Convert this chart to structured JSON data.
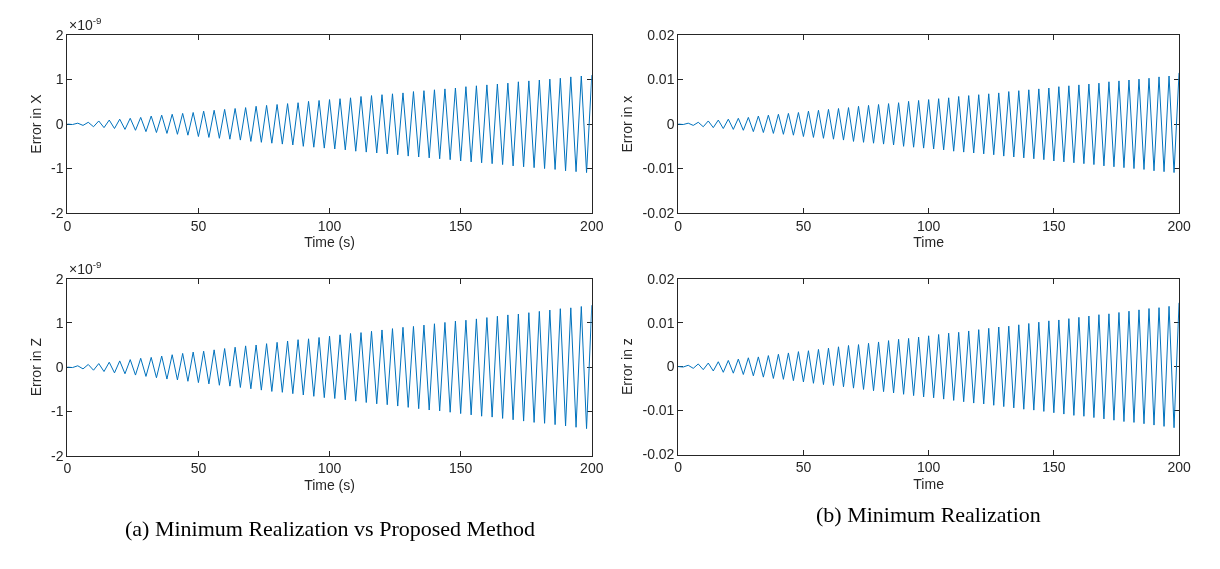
{
  "chart_data": [
    {
      "type": "line",
      "ylabel": "Error in X",
      "xlabel": "Time (s)",
      "annotations": [
        "×10$^{-9}$"
      ],
      "xlim": [
        0,
        200
      ],
      "xticks": [
        0,
        50,
        100,
        150,
        200
      ],
      "ylim": [
        -2,
        2
      ],
      "yticks": [
        -2,
        -1,
        0,
        1,
        2
      ],
      "marker": "none",
      "line_style": "solid",
      "x": [
        0,
        2,
        4,
        6,
        8,
        10,
        12,
        14,
        16,
        18,
        20,
        22,
        24,
        26,
        28,
        30,
        32,
        34,
        36,
        38,
        40,
        42,
        44,
        46,
        48,
        50,
        52,
        54,
        56,
        58,
        60,
        62,
        64,
        66,
        68,
        70,
        72,
        74,
        76,
        78,
        80,
        82,
        84,
        86,
        88,
        90,
        92,
        94,
        96,
        98,
        100,
        102,
        104,
        106,
        108,
        110,
        112,
        114,
        116,
        118,
        120,
        122,
        124,
        126,
        128,
        130,
        132,
        134,
        136,
        138,
        140,
        142,
        144,
        146,
        148,
        150,
        152,
        154,
        156,
        158,
        160,
        162,
        164,
        166,
        168,
        170,
        172,
        174,
        176,
        178,
        180,
        182,
        184,
        186,
        188,
        190,
        192,
        194,
        196,
        198,
        200
      ],
      "series": [
        {
          "color": "#0072bd",
          "values": [
            0,
            -0.01,
            0.02,
            -0.03,
            0.04,
            -0.06,
            0.07,
            -0.08,
            0.09,
            -0.1,
            0.11,
            -0.12,
            0.13,
            -0.14,
            0.15,
            -0.17,
            0.18,
            -0.19,
            0.2,
            -0.21,
            0.22,
            -0.23,
            0.24,
            -0.25,
            0.26,
            -0.28,
            0.29,
            -0.3,
            0.31,
            -0.32,
            0.33,
            -0.34,
            0.35,
            -0.36,
            0.37,
            -0.39,
            0.4,
            -0.41,
            0.42,
            -0.43,
            0.44,
            -0.45,
            0.46,
            -0.47,
            0.48,
            -0.5,
            0.51,
            -0.52,
            0.53,
            -0.54,
            0.55,
            -0.56,
            0.57,
            -0.58,
            0.59,
            -0.61,
            0.62,
            -0.63,
            0.64,
            -0.65,
            0.66,
            -0.67,
            0.68,
            -0.69,
            0.7,
            -0.72,
            0.73,
            -0.74,
            0.75,
            -0.76,
            0.77,
            -0.78,
            0.79,
            -0.8,
            0.81,
            -0.83,
            0.84,
            -0.85,
            0.86,
            -0.87,
            0.88,
            -0.89,
            0.9,
            -0.91,
            0.92,
            -0.94,
            0.95,
            -0.96,
            0.97,
            -0.98,
            0.99,
            -1.0,
            1.01,
            -1.02,
            1.03,
            -1.05,
            1.06,
            -1.07,
            1.08,
            -1.09,
            1.1
          ]
        }
      ]
    },
    {
      "type": "line",
      "ylabel": "Error in x",
      "xlabel": "Time",
      "xlim": [
        0,
        200
      ],
      "xticks": [
        0,
        50,
        100,
        150,
        200
      ],
      "ylim": [
        -0.02,
        0.02
      ],
      "yticks": [
        -0.02,
        -0.01,
        0,
        0.01,
        0.02
      ],
      "marker": "none",
      "line_style": "solid",
      "x": [
        0,
        2,
        4,
        6,
        8,
        10,
        12,
        14,
        16,
        18,
        20,
        22,
        24,
        26,
        28,
        30,
        32,
        34,
        36,
        38,
        40,
        42,
        44,
        46,
        48,
        50,
        52,
        54,
        56,
        58,
        60,
        62,
        64,
        66,
        68,
        70,
        72,
        74,
        76,
        78,
        80,
        82,
        84,
        86,
        88,
        90,
        92,
        94,
        96,
        98,
        100,
        102,
        104,
        106,
        108,
        110,
        112,
        114,
        116,
        118,
        120,
        122,
        124,
        126,
        128,
        130,
        132,
        134,
        136,
        138,
        140,
        142,
        144,
        146,
        148,
        150,
        152,
        154,
        156,
        158,
        160,
        162,
        164,
        166,
        168,
        170,
        172,
        174,
        176,
        178,
        180,
        182,
        184,
        186,
        188,
        190,
        192,
        194,
        196,
        198,
        200
      ],
      "series": [
        {
          "color": "#0072bd",
          "values": [
            0,
            -0.0001,
            0.0002,
            -0.0003,
            0.0004,
            -0.0006,
            0.0007,
            -0.0008,
            0.0009,
            -0.001,
            0.0011,
            -0.0012,
            0.0013,
            -0.0014,
            0.0015,
            -0.0017,
            0.0018,
            -0.0019,
            0.002,
            -0.0021,
            0.0022,
            -0.0023,
            0.0024,
            -0.0025,
            0.0026,
            -0.0028,
            0.0029,
            -0.003,
            0.0031,
            -0.0032,
            0.0033,
            -0.0034,
            0.0035,
            -0.0036,
            0.0037,
            -0.0039,
            0.004,
            -0.0041,
            0.0042,
            -0.0043,
            0.0044,
            -0.0045,
            0.0046,
            -0.0047,
            0.0048,
            -0.005,
            0.0051,
            -0.0052,
            0.0053,
            -0.0054,
            0.0055,
            -0.0056,
            0.0057,
            -0.0058,
            0.0059,
            -0.0061,
            0.0062,
            -0.0063,
            0.0064,
            -0.0065,
            0.0066,
            -0.0067,
            0.0068,
            -0.0069,
            0.007,
            -0.0072,
            0.0073,
            -0.0074,
            0.0075,
            -0.0076,
            0.0077,
            -0.0078,
            0.0079,
            -0.008,
            0.0081,
            -0.0083,
            0.0084,
            -0.0085,
            0.0086,
            -0.0087,
            0.0088,
            -0.0089,
            0.009,
            -0.0091,
            0.0092,
            -0.0094,
            0.0095,
            -0.0096,
            0.0097,
            -0.0098,
            0.0099,
            -0.01,
            0.0101,
            -0.0102,
            0.0103,
            -0.0105,
            0.0106,
            -0.0107,
            0.0108,
            -0.0109,
            0.0115
          ]
        }
      ]
    },
    {
      "type": "line",
      "ylabel": "Error in Z",
      "xlabel": "Time (s)",
      "annotations": [
        "×10$^{-9}$",
        "(a) Minimum Realization vs Proposed Method"
      ],
      "xlim": [
        0,
        200
      ],
      "xticks": [
        0,
        50,
        100,
        150,
        200
      ],
      "ylim": [
        -2,
        2
      ],
      "yticks": [
        -2,
        -1,
        0,
        1,
        2
      ],
      "marker": "none",
      "line_style": "solid",
      "x": [
        0,
        2,
        4,
        6,
        8,
        10,
        12,
        14,
        16,
        18,
        20,
        22,
        24,
        26,
        28,
        30,
        32,
        34,
        36,
        38,
        40,
        42,
        44,
        46,
        48,
        50,
        52,
        54,
        56,
        58,
        60,
        62,
        64,
        66,
        68,
        70,
        72,
        74,
        76,
        78,
        80,
        82,
        84,
        86,
        88,
        90,
        92,
        94,
        96,
        98,
        100,
        102,
        104,
        106,
        108,
        110,
        112,
        114,
        116,
        118,
        120,
        122,
        124,
        126,
        128,
        130,
        132,
        134,
        136,
        138,
        140,
        142,
        144,
        146,
        148,
        150,
        152,
        154,
        156,
        158,
        160,
        162,
        164,
        166,
        168,
        170,
        172,
        174,
        176,
        178,
        180,
        182,
        184,
        186,
        188,
        190,
        192,
        194,
        196,
        198,
        200
      ],
      "series": [
        {
          "color": "#0072bd",
          "values": [
            0,
            -0.01,
            0.03,
            -0.04,
            0.06,
            -0.07,
            0.08,
            -0.1,
            0.11,
            -0.13,
            0.14,
            -0.15,
            0.17,
            -0.18,
            0.2,
            -0.21,
            0.22,
            -0.24,
            0.25,
            -0.27,
            0.28,
            -0.29,
            0.31,
            -0.32,
            0.34,
            -0.35,
            0.36,
            -0.38,
            0.39,
            -0.41,
            0.42,
            -0.43,
            0.45,
            -0.46,
            0.48,
            -0.49,
            0.5,
            -0.52,
            0.53,
            -0.55,
            0.56,
            -0.57,
            0.59,
            -0.6,
            0.62,
            -0.63,
            0.64,
            -0.66,
            0.67,
            -0.69,
            0.7,
            -0.71,
            0.73,
            -0.74,
            0.76,
            -0.77,
            0.78,
            -0.8,
            0.81,
            -0.83,
            0.84,
            -0.85,
            0.87,
            -0.88,
            0.9,
            -0.91,
            0.92,
            -0.94,
            0.95,
            -0.97,
            0.98,
            -0.99,
            1.01,
            -1.02,
            1.04,
            -1.05,
            1.06,
            -1.08,
            1.09,
            -1.11,
            1.12,
            -1.13,
            1.15,
            -1.16,
            1.18,
            -1.19,
            1.2,
            -1.22,
            1.23,
            -1.25,
            1.26,
            -1.27,
            1.29,
            -1.3,
            1.32,
            -1.33,
            1.34,
            -1.36,
            1.37,
            -1.39,
            1.4
          ]
        }
      ]
    },
    {
      "type": "line",
      "ylabel": "Error in z",
      "xlabel": "Time",
      "annotations": [
        "(b) Minimum Realization"
      ],
      "xlim": [
        0,
        200
      ],
      "xticks": [
        0,
        50,
        100,
        150,
        200
      ],
      "ylim": [
        -0.02,
        0.02
      ],
      "yticks": [
        -0.02,
        -0.01,
        0,
        0.01,
        0.02
      ],
      "marker": "none",
      "line_style": "solid",
      "x": [
        0,
        2,
        4,
        6,
        8,
        10,
        12,
        14,
        16,
        18,
        20,
        22,
        24,
        26,
        28,
        30,
        32,
        34,
        36,
        38,
        40,
        42,
        44,
        46,
        48,
        50,
        52,
        54,
        56,
        58,
        60,
        62,
        64,
        66,
        68,
        70,
        72,
        74,
        76,
        78,
        80,
        82,
        84,
        86,
        88,
        90,
        92,
        94,
        96,
        98,
        100,
        102,
        104,
        106,
        108,
        110,
        112,
        114,
        116,
        118,
        120,
        122,
        124,
        126,
        128,
        130,
        132,
        134,
        136,
        138,
        140,
        142,
        144,
        146,
        148,
        150,
        152,
        154,
        156,
        158,
        160,
        162,
        164,
        166,
        168,
        170,
        172,
        174,
        176,
        178,
        180,
        182,
        184,
        186,
        188,
        190,
        192,
        194,
        196,
        198,
        200
      ],
      "series": [
        {
          "color": "#0072bd",
          "values": [
            0,
            -0.0001,
            0.0003,
            -0.0004,
            0.0006,
            -0.0007,
            0.0008,
            -0.001,
            0.0011,
            -0.0013,
            0.0014,
            -0.0015,
            0.0017,
            -0.0018,
            0.002,
            -0.0021,
            0.0022,
            -0.0024,
            0.0025,
            -0.0027,
            0.0028,
            -0.0029,
            0.0031,
            -0.0032,
            0.0034,
            -0.0035,
            0.0036,
            -0.0038,
            0.0039,
            -0.0041,
            0.0042,
            -0.0043,
            0.0045,
            -0.0046,
            0.0048,
            -0.0049,
            0.005,
            -0.0052,
            0.0053,
            -0.0055,
            0.0056,
            -0.0057,
            0.0059,
            -0.006,
            0.0062,
            -0.0063,
            0.0064,
            -0.0066,
            0.0067,
            -0.0069,
            0.007,
            -0.0071,
            0.0073,
            -0.0074,
            0.0076,
            -0.0077,
            0.0078,
            -0.008,
            0.0081,
            -0.0083,
            0.0084,
            -0.0085,
            0.0087,
            -0.0088,
            0.009,
            -0.0091,
            0.0092,
            -0.0094,
            0.0095,
            -0.0097,
            0.0098,
            -0.0099,
            0.0101,
            -0.0102,
            0.0104,
            -0.0105,
            0.0106,
            -0.0108,
            0.0109,
            -0.0111,
            0.0112,
            -0.0113,
            0.0115,
            -0.0116,
            0.0118,
            -0.0119,
            0.012,
            -0.0122,
            0.0123,
            -0.0125,
            0.0126,
            -0.0127,
            0.0129,
            -0.013,
            0.0132,
            -0.0133,
            0.0134,
            -0.0136,
            0.0137,
            -0.0139,
            0.0145
          ]
        }
      ]
    }
  ]
}
